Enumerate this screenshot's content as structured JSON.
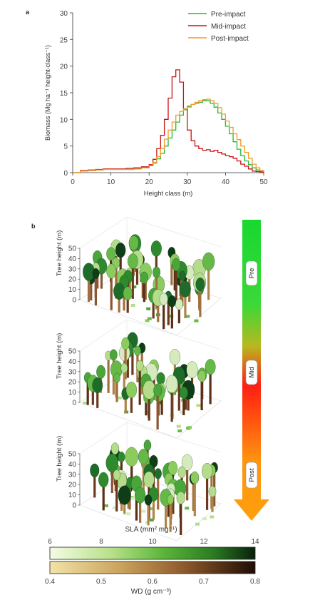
{
  "panel_a": {
    "label": "a",
    "xlabel": "Height class (m)",
    "ylabel": "Biomass (Mg ha⁻¹ height-class⁻¹)",
    "xticks": [
      "0",
      "10",
      "20",
      "30",
      "40",
      "50"
    ],
    "yticks": [
      "0",
      "5",
      "10",
      "15",
      "20",
      "25",
      "30"
    ],
    "legend": [
      "Pre-impact",
      "Mid-impact",
      "Post-impact"
    ]
  },
  "panel_b": {
    "label": "b",
    "ylabel": "Tree height (m)",
    "zticks": [
      "0",
      "10",
      "20",
      "30",
      "40",
      "50"
    ],
    "arrow_labels": [
      "Pre",
      "Mid",
      "Post"
    ],
    "sla_label": "SLA (mm² mg⁻¹)",
    "sla_ticks": [
      "6",
      "8",
      "10",
      "12",
      "14"
    ],
    "wd_label": "WD (g cm⁻³)",
    "wd_ticks": [
      "0.4",
      "0.5",
      "0.6",
      "0.7",
      "0.8"
    ]
  },
  "colors": {
    "pre": "#22bb33",
    "mid": "#c81414",
    "post": "#f39a2a"
  },
  "chart_data": {
    "type": "line",
    "x": [
      0,
      2,
      4,
      6,
      8,
      10,
      12,
      14,
      16,
      18,
      20,
      21,
      22,
      23,
      24,
      25,
      26,
      27,
      28,
      29,
      30,
      31,
      32,
      33,
      34,
      35,
      36,
      37,
      38,
      39,
      40,
      41,
      42,
      43,
      44,
      45,
      46,
      47,
      48,
      49,
      50
    ],
    "xlim": [
      0,
      50
    ],
    "ylim": [
      0,
      30
    ],
    "series": [
      {
        "name": "Pre-impact",
        "values": [
          0,
          0.3,
          0.4,
          0.5,
          0.6,
          0.6,
          0.6,
          0.6,
          0.7,
          0.9,
          1.3,
          1.8,
          2.6,
          3.6,
          5,
          6.5,
          8,
          9.5,
          10.8,
          11.8,
          12.5,
          12.8,
          13,
          13.2,
          13.5,
          13.5,
          13,
          12.3,
          11.2,
          10,
          8.7,
          7.3,
          5.8,
          4.4,
          3.2,
          2.2,
          1.5,
          0.9,
          0.5,
          0.3,
          0.1
        ]
      },
      {
        "name": "Mid-impact",
        "values": [
          0,
          0.4,
          0.5,
          0.6,
          0.7,
          0.7,
          0.7,
          0.8,
          0.9,
          1.1,
          1.5,
          2.5,
          4.5,
          7,
          10,
          14,
          18,
          19.3,
          17,
          12,
          8,
          6,
          5,
          4.5,
          4.2,
          4.3,
          4.0,
          4.2,
          3.8,
          3.5,
          3.2,
          3,
          2.7,
          2.2,
          1.6,
          1.2,
          0.7,
          0.3,
          0.2,
          0.1,
          0
        ]
      },
      {
        "name": "Post-impact",
        "values": [
          0,
          0.3,
          0.4,
          0.5,
          0.6,
          0.6,
          0.6,
          0.6,
          0.7,
          0.9,
          1.3,
          1.9,
          3,
          4.5,
          6.3,
          8,
          9.5,
          10.8,
          11.5,
          12,
          12.3,
          12.8,
          13.2,
          13.5,
          13.7,
          13.8,
          13.5,
          13,
          12.2,
          11,
          9.7,
          8.5,
          7.3,
          6.2,
          5,
          3.8,
          2.7,
          1.6,
          0.9,
          0.4,
          0.1
        ]
      }
    ]
  }
}
